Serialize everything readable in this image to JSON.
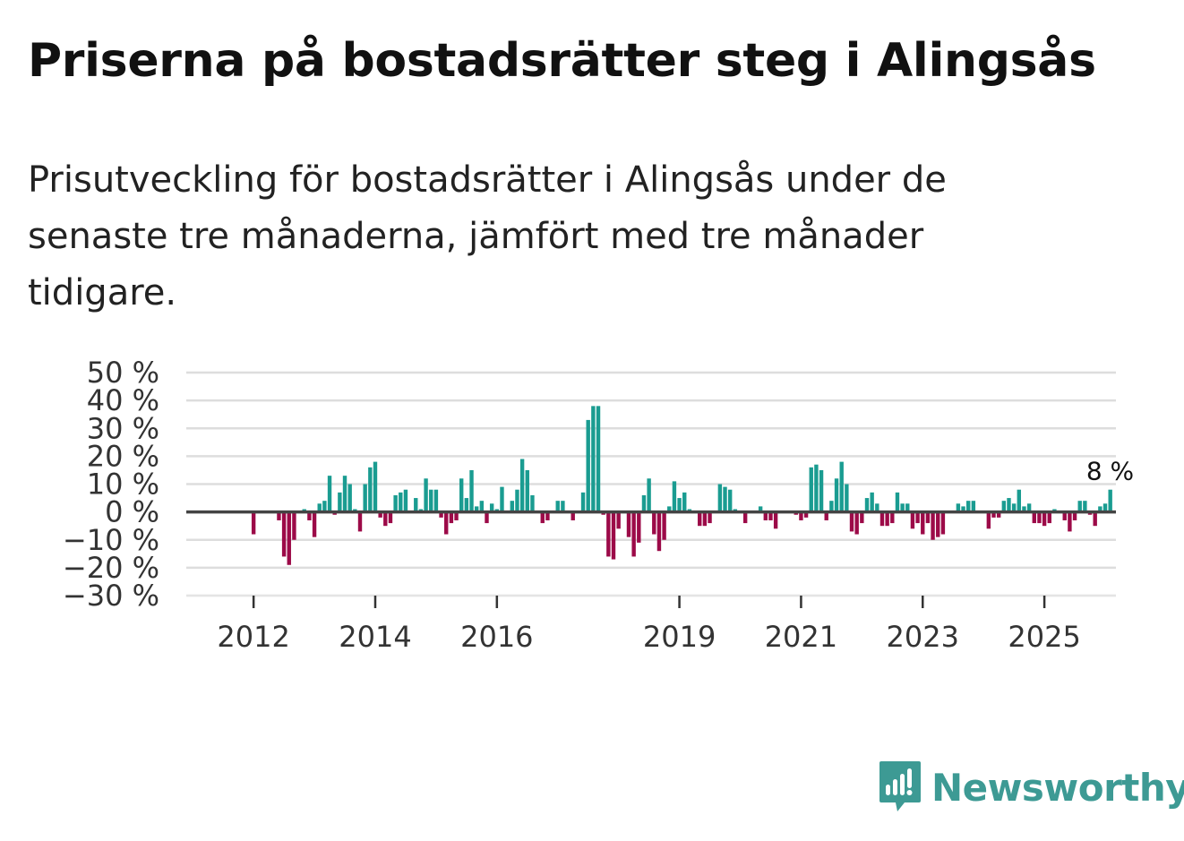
{
  "title": "Priserna på bostadsrätter steg i Alingsås",
  "subtitle": "Prisutveckling för bostadsrätter i Alingsås under de senaste tre månaderna, jämfört med tre månader tidigare.",
  "brand": {
    "name": "Newsworthy",
    "color": "#3d9a94"
  },
  "colors": {
    "positive": "#1a9c91",
    "negative": "#9c0a48",
    "grid": "#dddddd",
    "zero": "#444444"
  },
  "chart_data": {
    "type": "bar",
    "title": "",
    "xlabel": "",
    "ylabel": "",
    "ylim": [
      -30,
      50
    ],
    "yticks": [
      50,
      40,
      30,
      20,
      10,
      0,
      -10,
      -20,
      -30
    ],
    "ytick_labels": [
      "50 %",
      "40 %",
      "30 %",
      "20 %",
      "10 %",
      "0 %",
      "−10 %",
      "−20 %",
      "−30 %"
    ],
    "xticks": [
      {
        "label": "2012",
        "index": 9
      },
      {
        "label": "2014",
        "index": 33
      },
      {
        "label": "2016",
        "index": 57
      },
      {
        "label": "2019",
        "index": 93
      },
      {
        "label": "2021",
        "index": 117
      },
      {
        "label": "2023",
        "index": 141
      },
      {
        "label": "2025",
        "index": 165
      }
    ],
    "x_start": "2011-01",
    "last_value_label": "8 %",
    "values": [
      0,
      0,
      0,
      0,
      0,
      0,
      0,
      0,
      0,
      -8,
      0,
      0,
      0,
      0,
      -3,
      -16,
      -19,
      -10,
      0,
      1,
      -3,
      -9,
      3,
      4,
      13,
      -1,
      7,
      13,
      10,
      1,
      -7,
      10,
      16,
      18,
      -2,
      -5,
      -4,
      6,
      7,
      8,
      0,
      5,
      1,
      12,
      8,
      8,
      -2,
      -8,
      -4,
      -3,
      12,
      5,
      15,
      2,
      4,
      -4,
      3,
      1,
      9,
      0,
      4,
      8,
      19,
      15,
      6,
      0,
      -4,
      -3,
      0,
      4,
      4,
      0,
      -3,
      0,
      7,
      33,
      38,
      38,
      -1,
      -16,
      -17,
      -6,
      0,
      -9,
      -16,
      -11,
      6,
      12,
      -8,
      -14,
      -10,
      2,
      11,
      5,
      7,
      1,
      0,
      -5,
      -5,
      -4,
      0,
      10,
      9,
      8,
      1,
      0,
      -4,
      0,
      0,
      2,
      -3,
      -3,
      -6,
      0,
      0,
      0,
      -1,
      -3,
      -2,
      16,
      17,
      15,
      -3,
      4,
      12,
      18,
      10,
      -7,
      -8,
      -4,
      5,
      7,
      3,
      -5,
      -5,
      -4,
      7,
      3,
      3,
      -6,
      -4,
      -8,
      -4,
      -10,
      -9,
      -8,
      0,
      0,
      3,
      2,
      4,
      4,
      0,
      0,
      -6,
      -2,
      -2,
      4,
      5,
      3,
      8,
      2,
      3,
      -4,
      -4,
      -5,
      -4,
      1,
      0,
      -3,
      -7,
      -3,
      4,
      4,
      -1,
      -5,
      2,
      3,
      8
    ]
  }
}
